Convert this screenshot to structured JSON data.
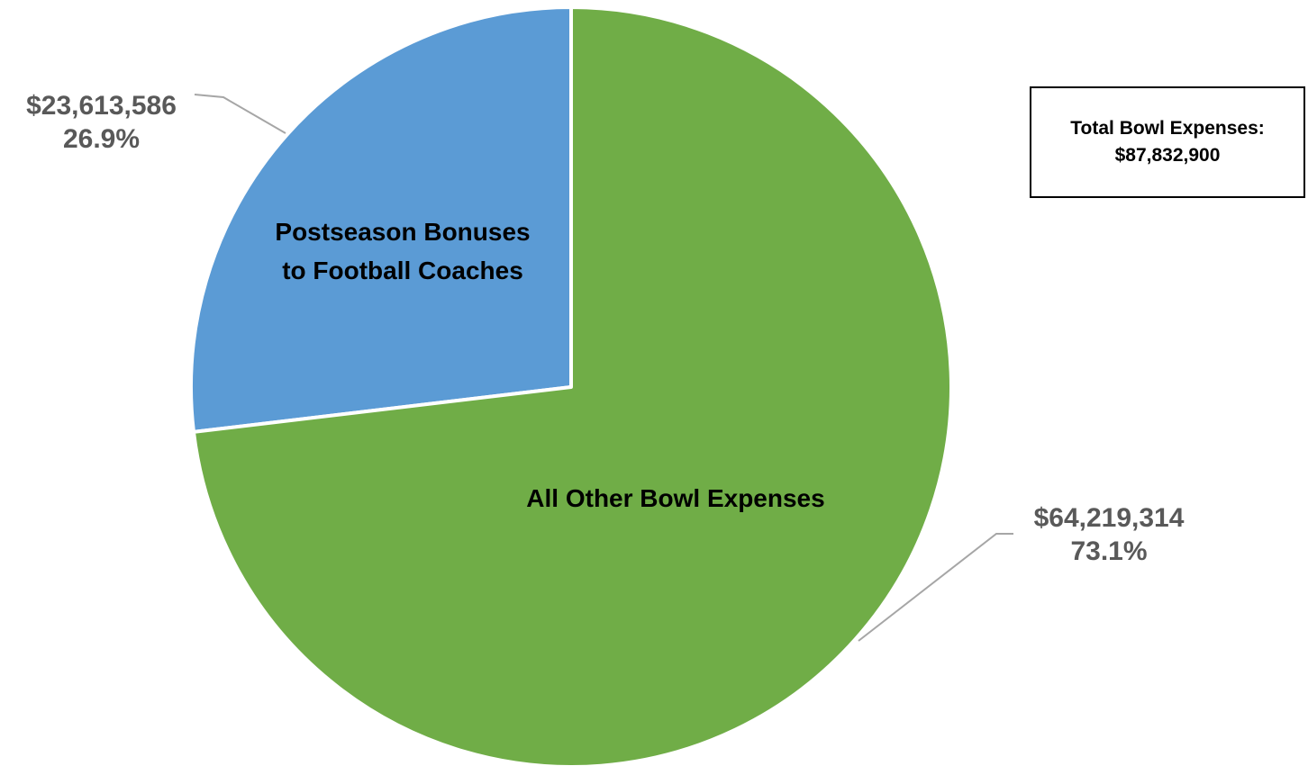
{
  "chart_data": {
    "type": "pie",
    "title": "",
    "slices": [
      {
        "category": "Postseason Bonuses to Football Coaches",
        "value": 23613586,
        "value_label": "$23,613,586",
        "percent": 26.9,
        "percent_label": "26.9%",
        "color": "#5b9bd5"
      },
      {
        "category": "All Other Bowl Expenses",
        "value": 64219314,
        "value_label": "$64,219,314",
        "percent": 73.1,
        "percent_label": "73.1%",
        "color": "#70ad47"
      }
    ]
  },
  "total_box": {
    "label": "Total Bowl Expenses:",
    "value": "$87,832,900"
  },
  "category_labels": {
    "bonus_line1": "Postseason Bonuses",
    "bonus_line2": "to Football Coaches",
    "other": "All Other Bowl Expenses"
  }
}
